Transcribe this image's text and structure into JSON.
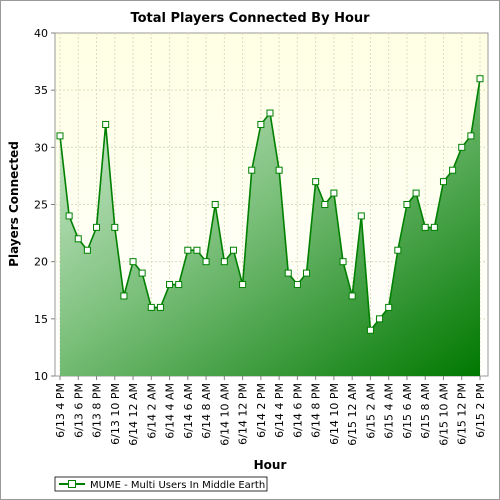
{
  "chart_data": {
    "type": "area",
    "title": "Total Players Connected By Hour",
    "xlabel": "Hour",
    "ylabel": "Players Connected",
    "ylim": [
      10,
      40
    ],
    "yticks": [
      10,
      15,
      20,
      25,
      30,
      35,
      40
    ],
    "grid": true,
    "legend_position": "bottom-left",
    "x": [
      "6/13 4 PM",
      "6/13 5 PM",
      "6/13 6 PM",
      "6/13 7 PM",
      "6/13 8 PM",
      "6/13 9 PM",
      "6/13 10 PM",
      "6/13 11 PM",
      "6/14 12 AM",
      "6/14 1 AM",
      "6/14 2 AM",
      "6/14 3 AM",
      "6/14 4 AM",
      "6/14 5 AM",
      "6/14 6 AM",
      "6/14 7 AM",
      "6/14 8 AM",
      "6/14 9 AM",
      "6/14 10 AM",
      "6/14 11 AM",
      "6/14 12 PM",
      "6/14 1 PM",
      "6/14 2 PM",
      "6/14 3 PM",
      "6/14 4 PM",
      "6/14 5 PM",
      "6/14 6 PM",
      "6/14 7 PM",
      "6/14 8 PM",
      "6/14 9 PM",
      "6/14 10 PM",
      "6/14 11 PM",
      "6/15 12 AM",
      "6/15 1 AM",
      "6/15 2 AM",
      "6/15 3 AM",
      "6/15 4 AM",
      "6/15 5 AM",
      "6/15 6 AM",
      "6/15 7 AM",
      "6/15 8 AM",
      "6/15 9 AM",
      "6/15 10 AM",
      "6/15 11 AM",
      "6/15 12 PM",
      "6/15 1 PM",
      "6/15 2 PM"
    ],
    "tick_labels": [
      "6/13 4 PM",
      "6/13 6 PM",
      "6/13 8 PM",
      "6/13 10 PM",
      "6/14 12 AM",
      "6/14 2 AM",
      "6/14 4 AM",
      "6/14 6 AM",
      "6/14 8 AM",
      "6/14 10 AM",
      "6/14 12 PM",
      "6/14 2 PM",
      "6/14 4 PM",
      "6/14 6 PM",
      "6/14 8 PM",
      "6/14 10 PM",
      "6/15 12 AM",
      "6/15 2 AM",
      "6/15 4 AM",
      "6/15 6 AM",
      "6/15 8 AM",
      "6/15 10 AM",
      "6/15 12 PM",
      "6/15 2 PM"
    ],
    "series": [
      {
        "name": "MUME - Multi Users In Middle Earth",
        "values": [
          31,
          24,
          22,
          21,
          23,
          32,
          23,
          17,
          20,
          19,
          16,
          16,
          18,
          18,
          21,
          21,
          20,
          25,
          20,
          21,
          18,
          28,
          32,
          33,
          28,
          19,
          18,
          19,
          27,
          25,
          26,
          20,
          17,
          24,
          14,
          15,
          16,
          21,
          25,
          26,
          23,
          23,
          27,
          28,
          30,
          31,
          36
        ]
      }
    ],
    "colors": {
      "line": "#008000",
      "fill_light": "#c8e6c8",
      "fill_dark": "#007a00",
      "plot_bg_top": "#ffffe6",
      "plot_bg_bottom": "#ffffff",
      "marker_fill": "#ffffff",
      "grid": "#e0e0c8"
    }
  }
}
